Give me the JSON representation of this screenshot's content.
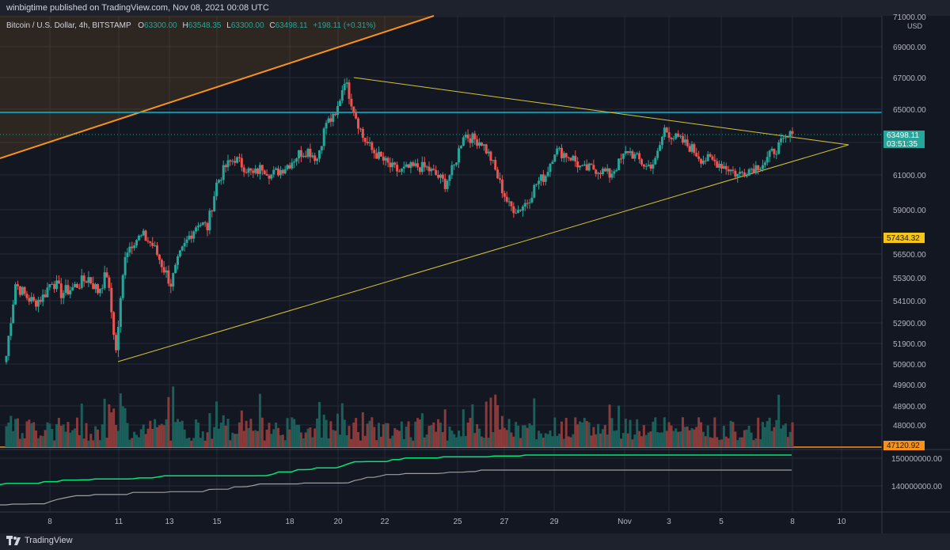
{
  "header": {
    "publish_text": "winbigtime published on TradingView.com, Nov 08, 2021 00:08 UTC"
  },
  "legend": {
    "symbol": "Bitcoin / U.S. Dollar, 4h, BITSTAMP",
    "o_label": "O",
    "o_value": "63300.00",
    "h_label": "H",
    "h_value": "63548.35",
    "l_label": "L",
    "l_value": "63300.00",
    "c_label": "C",
    "c_value": "63498.11",
    "change": "+198.11 (+0.31%)"
  },
  "price_axis": {
    "currency": "USD",
    "ticks": [
      "71000.00",
      "69000.00",
      "67000.00",
      "65000.00",
      "61000.00",
      "59000.00",
      "56500.00",
      "55300.00",
      "54100.00",
      "52900.00",
      "51900.00",
      "50900.00",
      "49900.00",
      "48900.00",
      "48000.00"
    ],
    "last_price": "63498.11",
    "countdown": "03:51:35",
    "tag_yellow": "57434.32",
    "tag_orange": "47120.92"
  },
  "lower_pane": {
    "ticks": [
      "150000000.00",
      "140000000.00"
    ]
  },
  "time_axis": {
    "labels": [
      "8",
      "11",
      "13",
      "15",
      "18",
      "20",
      "22",
      "25",
      "27",
      "29",
      "Nov",
      "3",
      "5",
      "8",
      "10"
    ]
  },
  "footer": {
    "brand": "TradingView"
  },
  "colors": {
    "background": "#131722",
    "grid": "#242a38",
    "up": "#26a69a",
    "down": "#ef5350",
    "vol_up": "#1b5e5a",
    "vol_down": "#8b3a3a",
    "triangle": "#d4c43a",
    "orange_line": "#f7931a",
    "cyan_line": "#00bcd4",
    "obv": "#00e676",
    "obv2": "#9e9e9e"
  },
  "chart_data": {
    "type": "candlestick",
    "title": "Bitcoin / U.S. Dollar, 4h, BITSTAMP",
    "ylim": [
      46900,
      71200
    ],
    "x_labels": [
      "8",
      "11",
      "13",
      "15",
      "18",
      "20",
      "22",
      "25",
      "27",
      "29",
      "Nov",
      "3",
      "5",
      "8",
      "10"
    ],
    "close_path": [
      51300,
      55000,
      54400,
      54000,
      54300,
      55200,
      54500,
      54700,
      55000,
      55300,
      54600,
      55500,
      51500,
      56600,
      57300,
      57500,
      57000,
      56000,
      55000,
      56400,
      57500,
      58300,
      58000,
      60500,
      61500,
      62000,
      61500,
      61000,
      61500,
      61000,
      61300,
      61700,
      62300,
      62500,
      62000,
      64200,
      64500,
      66900,
      65000,
      63300,
      62500,
      62000,
      61500,
      61200,
      61400,
      61500,
      61400,
      61000,
      60500,
      61500,
      63500,
      63200,
      63000,
      62000,
      60500,
      59200,
      59000,
      59500,
      60500,
      61000,
      62500,
      62300,
      62000,
      61300,
      61400,
      61300,
      61000,
      61700,
      62500,
      62000,
      61500,
      61800,
      63800,
      63300,
      63000,
      62600,
      62000,
      61900,
      61700,
      61400,
      61000,
      61300,
      61500,
      61800,
      62500,
      63000,
      63500
    ],
    "key_levels": {
      "resistance": 64900,
      "last": 63498.11,
      "yellow_tag": 57434.32,
      "orange_tag": 47120.92
    },
    "triangle": {
      "top_start": 67050,
      "lower_start": 51250,
      "apex": 63000
    }
  }
}
